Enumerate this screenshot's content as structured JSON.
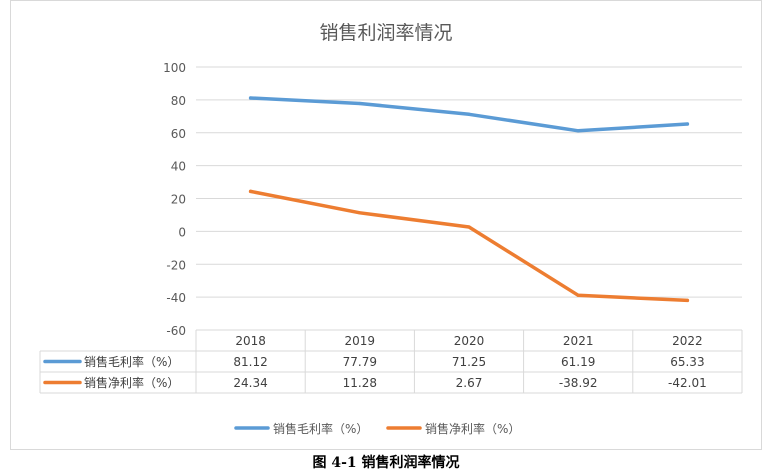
{
  "chart_data": {
    "type": "line",
    "title": "销售利润率情况",
    "categories": [
      "2018",
      "2019",
      "2020",
      "2021",
      "2022"
    ],
    "series": [
      {
        "name": "销售毛利率（%）",
        "color": "#5b9bd5",
        "values": [
          81.12,
          77.79,
          71.25,
          61.19,
          65.33
        ]
      },
      {
        "name": "销售净利率（%）",
        "color": "#ed7d31",
        "values": [
          24.34,
          11.28,
          2.67,
          -38.92,
          -42.01
        ]
      }
    ],
    "value_labels": [
      [
        "81.12",
        "77.79",
        "71.25",
        "61.19",
        "65.33"
      ],
      [
        "24.34",
        "11.28",
        "2.67",
        "-38.92",
        "-42.01"
      ]
    ],
    "ylim": [
      -60,
      100
    ],
    "yticks": [
      "100",
      "80",
      "60",
      "40",
      "20",
      "0",
      "-20",
      "-40",
      "-60"
    ],
    "grid": true,
    "data_table": true,
    "legend": [
      {
        "name": "销售毛利率（%）"
      },
      {
        "name": "销售净利率（%）"
      }
    ],
    "legend_position": "bottom"
  },
  "caption": "图 4-1  销售利润率情况"
}
